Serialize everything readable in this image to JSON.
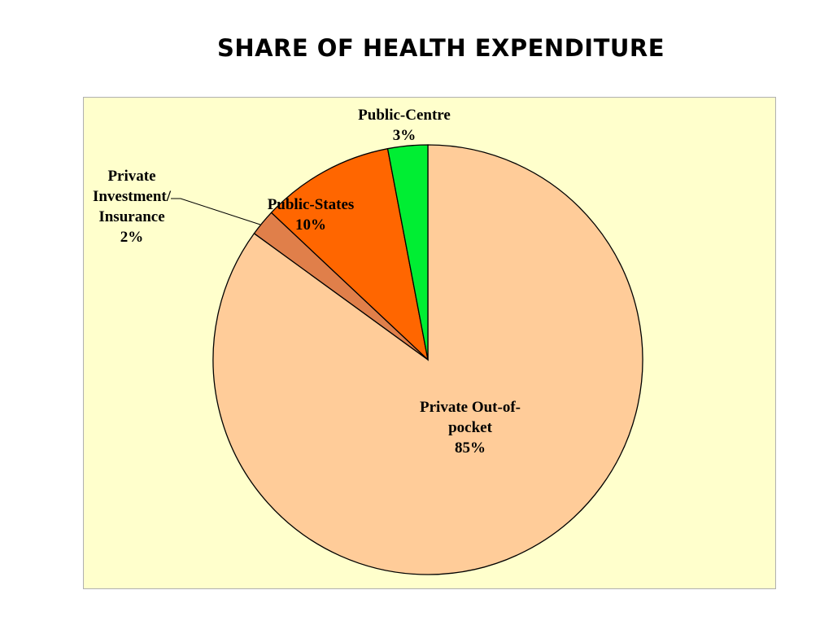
{
  "chart_data": {
    "type": "pie",
    "title": "SHARE OF HEALTH EXPENDITURE",
    "slices": [
      {
        "label_lines": [
          "Private Out-of-",
          "pocket",
          "85%"
        ],
        "value": 85,
        "color": "#ffcc99"
      },
      {
        "label_lines": [
          "Private",
          "Investment/",
          "Insurance",
          "2%"
        ],
        "value": 2,
        "color": "#e07f4a"
      },
      {
        "label_lines": [
          "Public-States",
          "10%"
        ],
        "value": 10,
        "color": "#ff6600"
      },
      {
        "label_lines": [
          "Public-Centre",
          "3%"
        ],
        "value": 3,
        "color": "#00ee33"
      }
    ],
    "start_angle_deg": 0,
    "direction": "clockwise",
    "legend": "none",
    "background": "#ffffcc"
  }
}
